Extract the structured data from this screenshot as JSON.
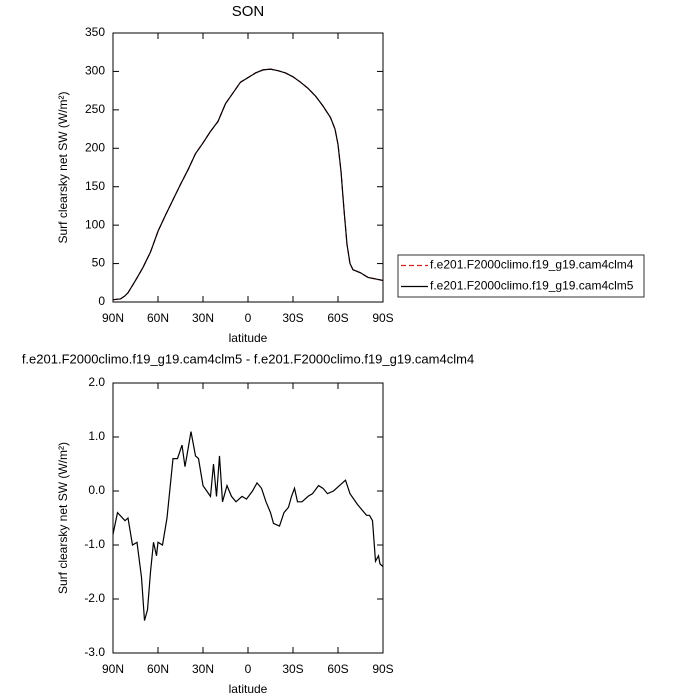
{
  "chart_data": [
    {
      "type": "line",
      "title": "SON",
      "y_label": "Surf clearsky net SW (W/m²)",
      "x_label": "latitude",
      "xlim": [
        90,
        -90
      ],
      "xticks": [
        {
          "value": 90,
          "label": "90N"
        },
        {
          "value": 60,
          "label": "60N"
        },
        {
          "value": 30,
          "label": "30N"
        },
        {
          "value": 0,
          "label": "0"
        },
        {
          "value": -30,
          "label": "30S"
        },
        {
          "value": -60,
          "label": "60S"
        },
        {
          "value": -90,
          "label": "90S"
        }
      ],
      "ylim": [
        0,
        350
      ],
      "yticks": [
        0,
        50,
        100,
        150,
        200,
        250,
        300,
        350
      ],
      "legend": "right",
      "series": [
        {
          "name": "f.e201.F2000climo.f19_g19.cam4clm4",
          "color": "#d62020",
          "dashed": true,
          "x": [
            90,
            85,
            82,
            80,
            75,
            70,
            65,
            60,
            55,
            50,
            45,
            40,
            35,
            30,
            25,
            20,
            15,
            10,
            5,
            0,
            -5,
            -10,
            -15,
            -20,
            -25,
            -30,
            -35,
            -40,
            -45,
            -50,
            -55,
            -58,
            -60,
            -62,
            -64,
            -66,
            -68,
            -70,
            -75,
            -80,
            -85,
            -90
          ],
          "values": [
            3,
            4,
            8,
            12,
            28,
            45,
            65,
            92,
            113,
            133,
            153,
            172,
            193,
            207,
            222,
            235,
            258,
            272,
            286,
            292,
            298,
            302,
            303,
            301,
            298,
            293,
            286,
            278,
            268,
            255,
            240,
            225,
            205,
            170,
            120,
            75,
            50,
            42,
            38,
            32,
            30,
            28
          ]
        },
        {
          "name": "f.e201.F2000climo.f19_g19.cam4clm5",
          "color": "#000000",
          "dashed": false,
          "x": [
            90,
            85,
            82,
            80,
            75,
            70,
            65,
            60,
            55,
            50,
            45,
            40,
            35,
            30,
            25,
            20,
            15,
            10,
            5,
            0,
            -5,
            -10,
            -15,
            -20,
            -25,
            -30,
            -35,
            -40,
            -45,
            -50,
            -55,
            -58,
            -60,
            -62,
            -64,
            -66,
            -68,
            -70,
            -75,
            -80,
            -85,
            -90
          ],
          "values": [
            3,
            4,
            8,
            12,
            28,
            45,
            65,
            92,
            113,
            133,
            153,
            172,
            193,
            207,
            222,
            235,
            258,
            272,
            286,
            292,
            298,
            302,
            303,
            301,
            298,
            293,
            286,
            278,
            268,
            255,
            240,
            225,
            205,
            170,
            120,
            75,
            50,
            42,
            38,
            32,
            30,
            28
          ]
        }
      ]
    },
    {
      "type": "line",
      "title": "f.e201.F2000climo.f19_g19.cam4clm5 - f.e201.F2000climo.f19_g19.cam4clm4",
      "y_label": "Surf clearsky net SW (W/m²)",
      "x_label": "latitude",
      "xlim": [
        90,
        -90
      ],
      "xticks": [
        {
          "value": 90,
          "label": "90N"
        },
        {
          "value": 60,
          "label": "60N"
        },
        {
          "value": 30,
          "label": "30N"
        },
        {
          "value": 0,
          "label": "0"
        },
        {
          "value": -30,
          "label": "30S"
        },
        {
          "value": -60,
          "label": "60S"
        },
        {
          "value": -90,
          "label": "90S"
        }
      ],
      "ylim": [
        -3,
        2
      ],
      "yticks": [
        {
          "value": -3,
          "label": "-3.0"
        },
        {
          "value": -2,
          "label": "-2.0"
        },
        {
          "value": -1,
          "label": "-1.0"
        },
        {
          "value": 0,
          "label": "0.0"
        },
        {
          "value": 1,
          "label": "1.0"
        },
        {
          "value": 2,
          "label": "2.0"
        }
      ],
      "series": [
        {
          "color": "#000000",
          "dashed": false,
          "x": [
            90,
            87,
            82,
            80,
            77,
            74,
            71,
            69,
            67,
            65,
            63,
            61,
            60,
            57,
            54,
            50,
            47,
            44,
            42,
            38,
            35,
            33,
            30,
            25,
            23,
            21,
            19,
            17,
            14,
            11,
            8,
            4,
            1,
            -3,
            -6,
            -9,
            -12,
            -15,
            -17,
            -21,
            -24,
            -27,
            -29,
            -31,
            -33,
            -36,
            -40,
            -43,
            -47,
            -50,
            -53,
            -57,
            -61,
            -65,
            -68,
            -73,
            -76,
            -79,
            -81,
            -83,
            -85,
            -87,
            -88,
            -90
          ],
          "values": [
            -0.8,
            -0.4,
            -0.55,
            -0.5,
            -1.0,
            -0.95,
            -1.6,
            -2.4,
            -2.2,
            -1.5,
            -0.95,
            -1.2,
            -0.95,
            -1.0,
            -0.5,
            0.6,
            0.6,
            0.85,
            0.45,
            1.1,
            0.65,
            0.6,
            0.1,
            -0.1,
            0.5,
            -0.1,
            0.65,
            -0.2,
            0.1,
            -0.1,
            -0.2,
            -0.1,
            -0.15,
            0.0,
            0.15,
            0.05,
            -0.2,
            -0.4,
            -0.6,
            -0.65,
            -0.4,
            -0.3,
            -0.1,
            0.05,
            -0.2,
            -0.2,
            -0.1,
            -0.05,
            0.1,
            0.05,
            -0.05,
            0.0,
            0.1,
            0.2,
            -0.05,
            -0.25,
            -0.35,
            -0.45,
            -0.45,
            -0.55,
            -1.3,
            -1.2,
            -1.35,
            -1.4
          ]
        }
      ]
    }
  ]
}
